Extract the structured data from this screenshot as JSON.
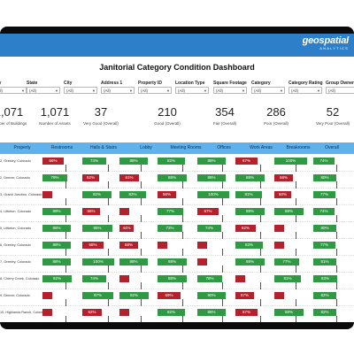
{
  "brand": {
    "name": "geospatial",
    "sub": "ANALYTICS"
  },
  "dashboard_title": "Janitorial Category Condition Dashboard",
  "filters": [
    {
      "label": "City",
      "value": "(All)"
    },
    {
      "label": "State",
      "value": "(All)"
    },
    {
      "label": "City",
      "value": "(All)"
    },
    {
      "label": "Address 1",
      "value": "(All)"
    },
    {
      "label": "Property ID",
      "value": "(All)"
    },
    {
      "label": "Location Type",
      "value": "(All)"
    },
    {
      "label": "Square Footage",
      "value": "(All)"
    },
    {
      "label": "Category",
      "value": "(All)"
    },
    {
      "label": "Category Rating",
      "value": "(All)"
    },
    {
      "label": "Group Owner",
      "value": "(All)"
    }
  ],
  "kpis": [
    {
      "value": "1,071",
      "label": "Number of Buildings"
    },
    {
      "value": "1,071",
      "label": "Number of Assets"
    },
    {
      "value": "37",
      "label": "Very Good (Overall)"
    },
    {
      "value": "210",
      "label": "Good (Overall)"
    },
    {
      "value": "354",
      "label": "Fair (Overall)"
    },
    {
      "value": "286",
      "label": "Poor (Overall)"
    },
    {
      "value": "52",
      "label": "Very Poor (Overall)"
    }
  ],
  "columns": [
    "Property",
    "Restrooms",
    "Halls & Stairs",
    "Lobby",
    "Meeting Rooms",
    "Offices",
    "Work Areas",
    "Breakrooms",
    "Overall"
  ],
  "rows": [
    {
      "property": "2, Greeley, Colorado",
      "values": [
        "66%",
        "74%",
        "88%",
        "82%",
        "88%",
        "67%",
        "100%",
        "74%"
      ]
    },
    {
      "property": "2, Denver, Colorado",
      "values": [
        "79%",
        "52%",
        "61%",
        "88%",
        "88%",
        "88%",
        "58%",
        "80%"
      ]
    },
    {
      "property": "3, Grand Junction, Colorado",
      "values": [
        "",
        "92%",
        "82%",
        "56%",
        "100%",
        "81%",
        "50%",
        "77%"
      ]
    },
    {
      "property": "4, Littleton, Colorado",
      "values": [
        "88%",
        "56%",
        "",
        "77%",
        "67%",
        "88%",
        "88%",
        "74%"
      ]
    },
    {
      "property": "5, Littleton, Colorado",
      "values": [
        "88%",
        "95%",
        "44%",
        "73%",
        "74%",
        "62%",
        "",
        "80%"
      ]
    },
    {
      "property": "6, Greeley, Colorado",
      "values": [
        "88%",
        "68%",
        "58%",
        "",
        "",
        "83%",
        "",
        "77%"
      ]
    },
    {
      "property": "7, Greeley, Colorado",
      "values": [
        "88%",
        "100%",
        "88%",
        "88%",
        "",
        "88%",
        "77%",
        "81%"
      ]
    },
    {
      "property": "8, Cherry Creek, Colorado",
      "values": [
        "92%",
        "74%",
        "",
        "88%",
        "78%",
        "",
        "81%",
        "83%"
      ]
    },
    {
      "property": "9, Denver, Colorado",
      "values": [
        "",
        "97%",
        "92%",
        "69%",
        "90%",
        "57%",
        "",
        "82%"
      ]
    },
    {
      "property": "10, Highlands Ranch, Colorado",
      "values": [
        "",
        "62%",
        "",
        "82%",
        "88%",
        "67%",
        "88%",
        "82%"
      ]
    },
    {
      "property": "11, Lakewood, Colorado",
      "values": [
        "",
        "",
        "",
        "74%",
        "58%",
        "",
        "69%",
        "88%"
      ]
    }
  ],
  "colors": {
    "topbar": "#2e7fc9",
    "header": "#5fb2ee",
    "good": "#2f9a43",
    "poor": "#b3222c",
    "frame": "#0b0b0b"
  }
}
